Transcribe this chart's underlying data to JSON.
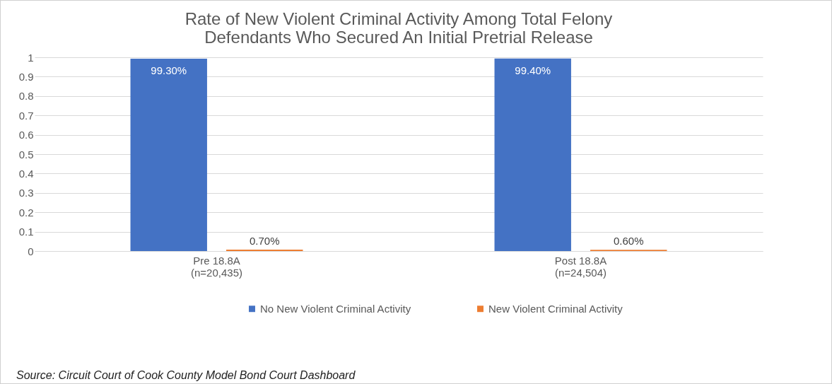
{
  "chart_data": {
    "type": "bar",
    "title": "Rate of New Violent Criminal Activity Among Total Felony Defendants Who Secured An Initial Pretrial Release",
    "categories": [
      "Pre 18.8A\n(n=20,435)",
      "Post 18.8A\n(n=24,504)"
    ],
    "series": [
      {
        "name": "No New Violent Criminal Activity",
        "color": "#4472c4",
        "values": [
          0.993,
          0.994
        ],
        "value_labels": [
          "99.30%",
          "99.40%"
        ]
      },
      {
        "name": "New Violent Criminal Activity",
        "color": "#ed7d31",
        "values": [
          0.007,
          0.006
        ],
        "value_labels": [
          "0.70%",
          "0.60%"
        ]
      }
    ],
    "ylim": [
      0,
      1
    ],
    "yticks": [
      0,
      0.1,
      0.2,
      0.3,
      0.4,
      0.5,
      0.6,
      0.7,
      0.8,
      0.9,
      1
    ],
    "grid": "y",
    "legend": "bottom",
    "annotations": [
      "Source: Circuit Court of Cook County Model Bond Court Dashboard"
    ]
  }
}
